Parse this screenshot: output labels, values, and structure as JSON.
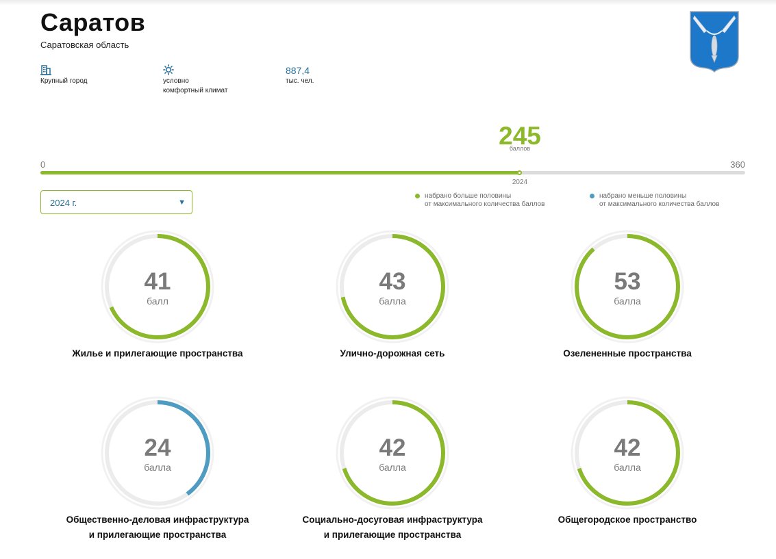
{
  "city": {
    "name": "Саратов",
    "region": "Саратовская область"
  },
  "info": [
    {
      "icon": "building-icon",
      "line1": "Крупный город",
      "line2": ""
    },
    {
      "icon": "sun-icon",
      "line1": "условно",
      "line2": "комфортный климат"
    },
    {
      "icon": "",
      "value": "887,4",
      "line1": "тыс. чел.",
      "line2": ""
    }
  ],
  "score": {
    "total": 245,
    "unit": "баллов",
    "min": 0,
    "max": 360,
    "year": "2024"
  },
  "year_select": {
    "value": "2024 г."
  },
  "legend": [
    {
      "color": "#8cb82b",
      "line1": "набрано больше половины",
      "line2": "от максимального количества баллов"
    },
    {
      "color": "#4f9cc3",
      "line1": "набрано меньше половины",
      "line2": "от максимального количества баллов"
    }
  ],
  "categories": [
    {
      "value": 41,
      "max": 60,
      "unit": "балл",
      "title1": "Жилье и прилегающие пространства",
      "title2": ""
    },
    {
      "value": 43,
      "max": 60,
      "unit": "балла",
      "title1": "Улично-дорожная сеть",
      "title2": ""
    },
    {
      "value": 53,
      "max": 60,
      "unit": "балла",
      "title1": "Озелененные пространства",
      "title2": ""
    },
    {
      "value": 24,
      "max": 60,
      "unit": "балла",
      "title1": "Общественно-деловая инфраструктура",
      "title2": "и прилегающие пространства"
    },
    {
      "value": 42,
      "max": 60,
      "unit": "балла",
      "title1": "Социально-досуговая инфраструктура",
      "title2": "и прилегающие пространства"
    },
    {
      "value": 42,
      "max": 60,
      "unit": "балла",
      "title1": "Общегородское пространство",
      "title2": ""
    }
  ],
  "colors": {
    "above_half": "#8cb82b",
    "below_half": "#4f9cc3",
    "track": "#ececec"
  }
}
